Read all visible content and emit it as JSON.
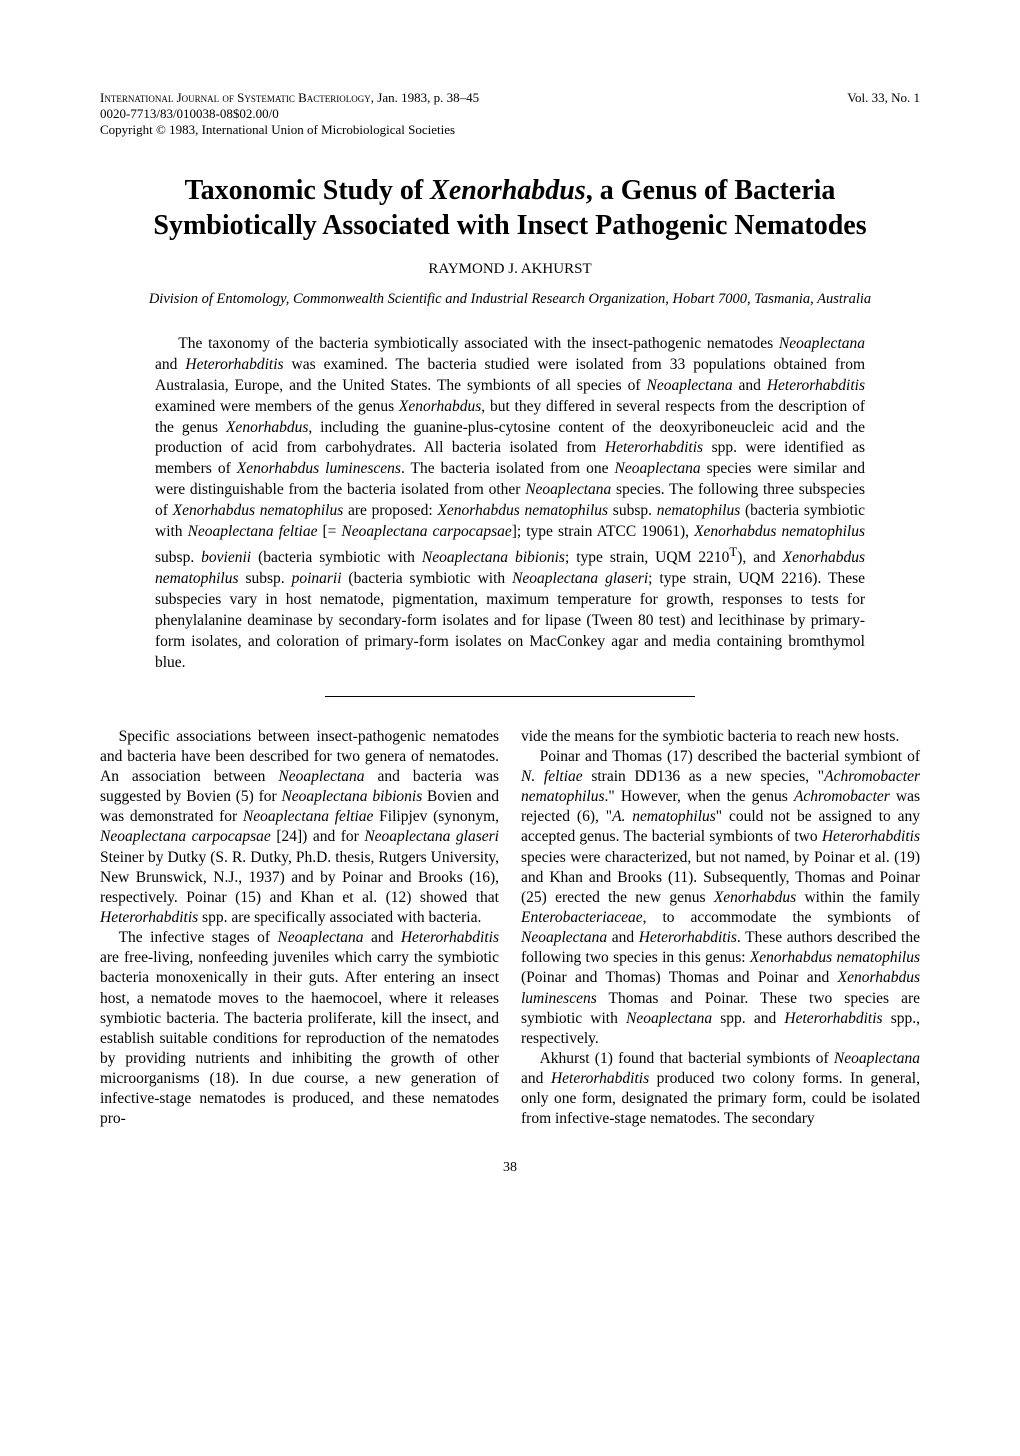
{
  "header": {
    "journal": "International Journal of Systematic Bacteriology",
    "date_pages": ", Jan. 1983, p. 38–45",
    "code": "0020-7713/83/010038-08$02.00/0",
    "copyright": "Copyright © 1983, International Union of Microbiological Societies",
    "volume": "Vol. 33, No. 1"
  },
  "title": {
    "line1_pre": "Taxonomic Study of ",
    "line1_italic": "Xenorhabdus",
    "line1_post": ", a Genus of Bacteria",
    "line2": "Symbiotically Associated with Insect Pathogenic Nematodes"
  },
  "author": "RAYMOND J. AKHURST",
  "affiliation": "Division of Entomology, Commonwealth Scientific and Industrial Research Organization, Hobart 7000, Tasmania, Australia",
  "abstract": "The taxonomy of the bacteria symbiotically associated with the insect-pathogenic nematodes Neoaplectana and Heterorhabditis was examined. The bacteria studied were isolated from 33 populations obtained from Australasia, Europe, and the United States. The symbionts of all species of Neoaplectana and Heterorhabditis examined were members of the genus Xenorhabdus, but they differed in several respects from the description of the genus Xenorhabdus, including the guanine-plus-cytosine content of the deoxyriboneucleic acid and the production of acid from carbohydrates. All bacteria isolated from Heterorhabditis spp. were identified as members of Xenorhabdus luminescens. The bacteria isolated from one Neoaplectana species were similar and were distinguishable from the bacteria isolated from other Neoaplectana species. The following three subspecies of Xenorhabdus nematophilus are proposed: Xenorhabdus nematophilus subsp. nematophilus (bacteria symbiotic with Neoaplectana feltiae [= Neoaplectana carpocapsae]; type strain ATCC 19061), Xenorhabdus nematophilus subsp. bovienii (bacteria symbiotic with Neoaplectana bibionis; type strain, UQM 2210T), and Xenorhabdus nematophilus subsp. poinarii (bacteria symbiotic with Neoaplectana glaseri; type strain, UQM 2216). These subspecies vary in host nematode, pigmentation, maximum temperature for growth, responses to tests for phenylalanine deaminase by secondary-form isolates and for lipase (Tween 80 test) and lecithinase by primary-form isolates, and coloration of primary-form isolates on MacConkey agar and media containing bromthymol blue.",
  "body": {
    "col1_p1": "Specific associations between insect-pathogenic nematodes and bacteria have been described for two genera of nematodes. An association between Neoaplectana and bacteria was suggested by Bovien (5) for Neoaplectana bibionis Bovien and was demonstrated for Neoaplectana feltiae Filipjev (synonym, Neoaplectana carpocapsae [24]) and for Neoaplectana glaseri Steiner by Dutky (S. R. Dutky, Ph.D. thesis, Rutgers University, New Brunswick, N.J., 1937) and by Poinar and Brooks (16), respectively. Poinar (15) and Khan et al. (12) showed that Heterorhabditis spp. are specifically associated with bacteria.",
    "col1_p2": "The infective stages of Neoaplectana and Heterorhabditis are free-living, nonfeeding juveniles which carry the symbiotic bacteria monoxenically in their guts. After entering an insect host, a nematode moves to the haemocoel, where it releases symbiotic bacteria. The bacteria proliferate, kill the insect, and establish suitable conditions for reproduction of the nematodes by providing nutrients and inhibiting the growth of other microorganisms (18). In due course, a new generation of infective-stage nematodes is produced, and these nematodes pro-",
    "col2_p1": "vide the means for the symbiotic bacteria to reach new hosts.",
    "col2_p2": "Poinar and Thomas (17) described the bacterial symbiont of N. feltiae strain DD136 as a new species, \"Achromobacter nematophilus.\" However, when the genus Achromobacter was rejected (6), \"A. nematophilus\" could not be assigned to any accepted genus. The bacterial symbionts of two Heterorhabditis species were characterized, but not named, by Poinar et al. (19) and Khan and Brooks (11). Subsequently, Thomas and Poinar (25) erected the new genus Xenorhabdus within the family Enterobacteriaceae, to accommodate the symbionts of Neoaplectana and Heterorhabditis. These authors described the following two species in this genus: Xenorhabdus nematophilus (Poinar and Thomas) Thomas and Poinar and Xenorhabdus luminescens Thomas and Poinar. These two species are symbiotic with Neoaplectana spp. and Heterorhabditis spp., respectively.",
    "col2_p3": "Akhurst (1) found that bacterial symbionts of Neoaplectana and Heterorhabditis produced two colony forms. In general, only one form, designated the primary form, could be isolated from infective-stage nematodes. The secondary"
  },
  "page_number": "38"
}
